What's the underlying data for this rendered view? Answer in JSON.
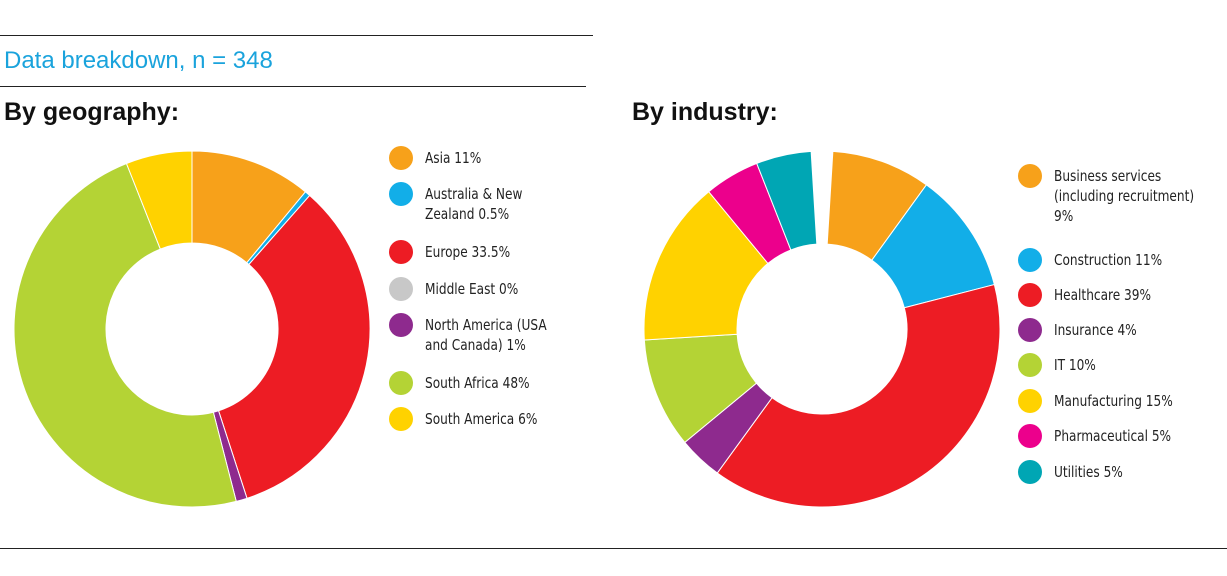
{
  "heading": "Data breakdown, n = 348",
  "chart_data": [
    {
      "type": "pie",
      "donut": true,
      "title": "By geography:",
      "legend_position": "right",
      "slices": [
        {
          "label": "Asia 11%",
          "name": "Asia",
          "value": 11,
          "color": "#f7a11a"
        },
        {
          "label": "Australia & New\nZealand 0.5%",
          "name": "Australia & New Zealand",
          "value": 0.5,
          "color": "#12aee8"
        },
        {
          "label": "Europe 33.5%",
          "name": "Europe",
          "value": 33.5,
          "color": "#ed1c24"
        },
        {
          "label": "Middle East 0%",
          "name": "Middle East",
          "value": 0,
          "color": "#c8c8c8"
        },
        {
          "label": "North America (USA\nand Canada) 1%",
          "name": "North America (USA and Canada)",
          "value": 1,
          "color": "#8e2a8e"
        },
        {
          "label": "South Africa 48%",
          "name": "South Africa",
          "value": 48,
          "color": "#b4d335"
        },
        {
          "label": "South America 6%",
          "name": "South America",
          "value": 6,
          "color": "#ffd200"
        }
      ]
    },
    {
      "type": "pie",
      "donut": true,
      "title": "By industry:",
      "legend_position": "right",
      "slices": [
        {
          "label": "Business services\n(including recruitment)\n9%",
          "name": "Business services (including recruitment)",
          "value": 9,
          "color": "#f7a11a"
        },
        {
          "label": "Construction 11%",
          "name": "Construction",
          "value": 11,
          "color": "#12aee8"
        },
        {
          "label": "Healthcare 39%",
          "name": "Healthcare",
          "value": 39,
          "color": "#ed1c24"
        },
        {
          "label": "Insurance 4%",
          "name": "Insurance",
          "value": 4,
          "color": "#8e2a8e"
        },
        {
          "label": "IT 10%",
          "name": "IT",
          "value": 10,
          "color": "#b4d335"
        },
        {
          "label": "Manufacturing 15%",
          "name": "Manufacturing",
          "value": 15,
          "color": "#ffd200"
        },
        {
          "label": "Pharmaceutical 5%",
          "name": "Pharmaceutical",
          "value": 5,
          "color": "#ec008c"
        },
        {
          "label": "Utilities 5%",
          "name": "Utilities",
          "value": 5,
          "color": "#00a6b4"
        }
      ]
    }
  ]
}
